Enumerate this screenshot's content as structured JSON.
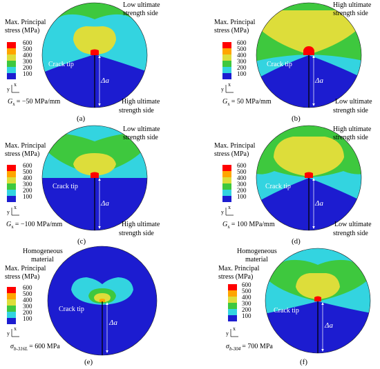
{
  "legend_title_line1": "Max. Principal",
  "legend_title_line2": "stress (MPa)",
  "legend_levels": [
    "600",
    "500",
    "400",
    "300",
    "200",
    "100"
  ],
  "legend_colors": [
    "#ff0000",
    "#ffa500",
    "#dddd3a",
    "#3ec83e",
    "#33d4e0",
    "#1c1cd0"
  ],
  "crack_tip_label": "Crack tip",
  "delta_a_label": "Δa",
  "axis_x": "x",
  "axis_y": "y",
  "homogeneous_line1": "Homogeneous",
  "homogeneous_line2": "material",
  "panels": [
    {
      "id": "a",
      "label": "(a)",
      "top_line1": "Low ultimate",
      "top_line2": "strength side",
      "bottom_line1": "High ultimate",
      "bottom_line2": "strength side",
      "gradient_symbol": "G",
      "gradient_sub": "x",
      "gradient_value": "= −50 MPa/mm"
    },
    {
      "id": "b",
      "label": "(b)",
      "top_line1": "High ultimate",
      "top_line2": "strength side",
      "bottom_line1": "Low ultimate",
      "bottom_line2": "strength side",
      "gradient_symbol": "G",
      "gradient_sub": "x",
      "gradient_value": "= 50 MPa/mm"
    },
    {
      "id": "c",
      "label": "(c)",
      "top_line1": "Low ultimate",
      "top_line2": "strength side",
      "bottom_line1": "High ultimate",
      "bottom_line2": "strength side",
      "gradient_symbol": "G",
      "gradient_sub": "x",
      "gradient_value": "= −100 MPa/mm"
    },
    {
      "id": "d",
      "label": "(d)",
      "top_line1": "High ultimate",
      "top_line2": "strength side",
      "bottom_line1": "Low ultimate",
      "bottom_line2": "strength side",
      "gradient_symbol": "G",
      "gradient_sub": "x",
      "gradient_value": "= 100 MPa/mm"
    },
    {
      "id": "e",
      "label": "(e)",
      "sigma_symbol": "σ",
      "sigma_sub": "b-316L",
      "sigma_value": "= 600 MPa"
    },
    {
      "id": "f",
      "label": "(f)",
      "sigma_symbol": "σ",
      "sigma_sub": "b-304",
      "sigma_value": "= 700 MPa"
    }
  ]
}
